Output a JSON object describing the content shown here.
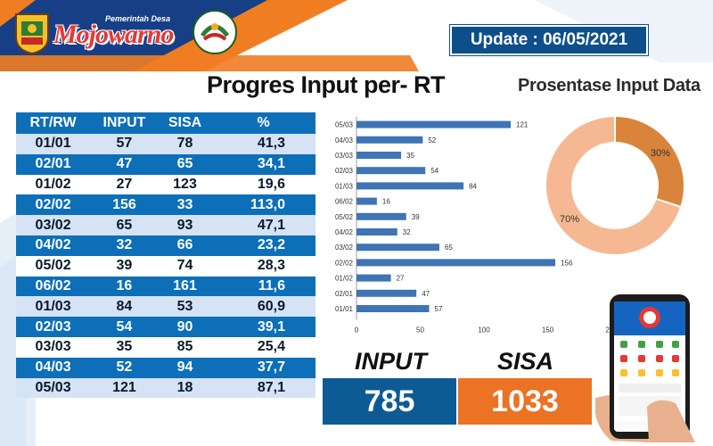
{
  "header": {
    "brand_sub": "Pemerintah Desa",
    "brand_name": "Mojowarno",
    "update_text": "Update : 06/05/2021"
  },
  "main_title": "Progres Input per- RT",
  "donut_title": "Prosentase Input Data",
  "colors": {
    "table_blue": "#0d6fb8",
    "table_light": "#d5e3f5",
    "bar": "#3f74b5",
    "donut_dark": "#d9843a",
    "donut_light": "#f6b892",
    "input_box": "#0d5b94",
    "sisa_box": "#ec7224",
    "header_orange": "#f07d22",
    "header_blue": "#163f86"
  },
  "table": {
    "headers": [
      "RT/RW",
      "INPUT",
      "SISA",
      "%"
    ],
    "rows": [
      [
        "01/01",
        "57",
        "78",
        "41,3"
      ],
      [
        "02/01",
        "47",
        "65",
        "34,1"
      ],
      [
        "01/02",
        "27",
        "123",
        "19,6"
      ],
      [
        "02/02",
        "156",
        "33",
        "113,0"
      ],
      [
        "03/02",
        "65",
        "93",
        "47,1"
      ],
      [
        "04/02",
        "32",
        "66",
        "23,2"
      ],
      [
        "05/02",
        "39",
        "74",
        "28,3"
      ],
      [
        "06/02",
        "16",
        "161",
        "11,6"
      ],
      [
        "01/03",
        "84",
        "53",
        "60,9"
      ],
      [
        "02/03",
        "54",
        "90",
        "39,1"
      ],
      [
        "03/03",
        "35",
        "85",
        "25,4"
      ],
      [
        "04/03",
        "52",
        "94",
        "37,7"
      ],
      [
        "05/03",
        "121",
        "18",
        "87,1"
      ]
    ]
  },
  "chart_data": [
    {
      "type": "bar",
      "orientation": "horizontal",
      "categories": [
        "05/03",
        "04/03",
        "03/03",
        "02/03",
        "01/03",
        "06/02",
        "05/02",
        "04/02",
        "03/02",
        "02/02",
        "01/02",
        "02/01",
        "01/01"
      ],
      "values": [
        121,
        52,
        35,
        54,
        84,
        16,
        39,
        32,
        65,
        156,
        27,
        47,
        57
      ],
      "xlim": [
        0,
        200
      ],
      "xticks": [
        0,
        50,
        100,
        150,
        200
      ],
      "title": "",
      "xlabel": "",
      "ylabel": "",
      "grid": false,
      "data_labels": true
    },
    {
      "type": "pie",
      "variant": "donut",
      "title": "Prosentase Input Data",
      "slices": [
        {
          "label": "30%",
          "value": 30,
          "color": "#d9843a"
        },
        {
          "label": "70%",
          "value": 70,
          "color": "#f6b892"
        }
      ]
    }
  ],
  "totals": {
    "input_label": "INPUT",
    "input_value": "785",
    "sisa_label": "SISA",
    "sisa_value": "1033"
  }
}
